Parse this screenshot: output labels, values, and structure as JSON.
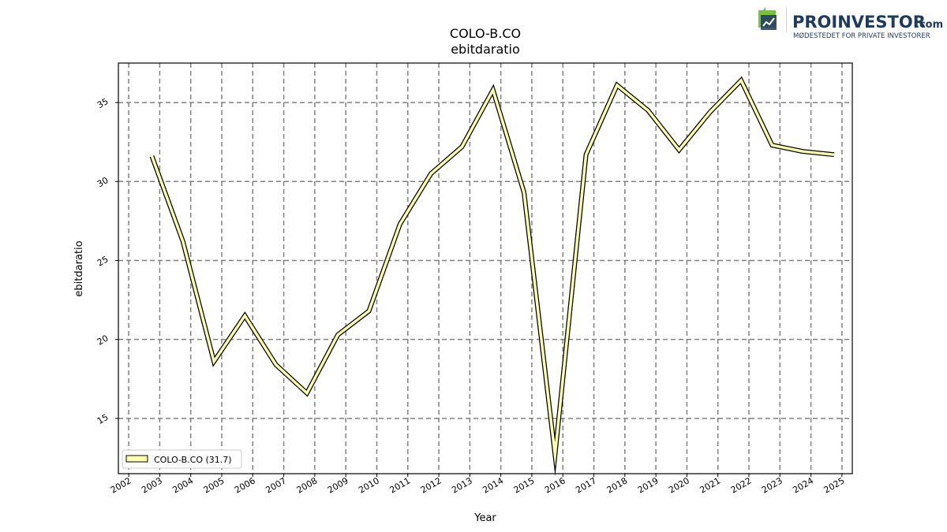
{
  "logo": {
    "name": "PROINVESTOR",
    "suffix": ".com",
    "tagline": "MØDESTEDET FOR PRIVATE INVESTORER",
    "colors": {
      "green": "#7ac143",
      "navy": "#1f3a5f"
    }
  },
  "chart_data": {
    "type": "line",
    "title": "COLO-B.CO",
    "subtitle": "ebitdaratio",
    "xlabel": "Year",
    "ylabel": "ebitdaratio",
    "xlim": [
      "2001-09",
      "2025-05"
    ],
    "ylim": [
      11.5,
      37.5
    ],
    "x_ticks": [
      "2002",
      "2003",
      "2004",
      "2005",
      "2006",
      "2007",
      "2008",
      "2009",
      "2010",
      "2011",
      "2012",
      "2013",
      "2014",
      "2015",
      "2016",
      "2017",
      "2018",
      "2019",
      "2020",
      "2021",
      "2022",
      "2023",
      "2024",
      "2025"
    ],
    "y_ticks": [
      15,
      20,
      25,
      30,
      35
    ],
    "grid": true,
    "legend_position": "lower-left",
    "series": [
      {
        "name": "COLO-B.CO (31.7)",
        "color": "#ffffb0",
        "edge_color": "#000000",
        "points": [
          {
            "x": "2002-09-30",
            "y": 31.6
          },
          {
            "x": "2003-09-30",
            "y": 26.2
          },
          {
            "x": "2004-09-30",
            "y": 18.6
          },
          {
            "x": "2005-09-30",
            "y": 21.5
          },
          {
            "x": "2006-09-30",
            "y": 18.4
          },
          {
            "x": "2007-09-30",
            "y": 16.6
          },
          {
            "x": "2008-09-30",
            "y": 20.3
          },
          {
            "x": "2009-09-30",
            "y": 21.8
          },
          {
            "x": "2010-09-30",
            "y": 27.3
          },
          {
            "x": "2011-09-30",
            "y": 30.5
          },
          {
            "x": "2012-09-30",
            "y": 32.2
          },
          {
            "x": "2013-09-30",
            "y": 35.8
          },
          {
            "x": "2014-09-30",
            "y": 29.3
          },
          {
            "x": "2015-09-30",
            "y": 12.7
          },
          {
            "x": "2016-09-30",
            "y": 31.7
          },
          {
            "x": "2017-09-30",
            "y": 36.1
          },
          {
            "x": "2018-09-30",
            "y": 34.5
          },
          {
            "x": "2019-09-30",
            "y": 32.0
          },
          {
            "x": "2020-09-30",
            "y": 34.4
          },
          {
            "x": "2021-09-30",
            "y": 36.4
          },
          {
            "x": "2022-09-30",
            "y": 32.3
          },
          {
            "x": "2023-09-30",
            "y": 31.9
          },
          {
            "x": "2024-09-30",
            "y": 31.7
          }
        ]
      }
    ]
  }
}
